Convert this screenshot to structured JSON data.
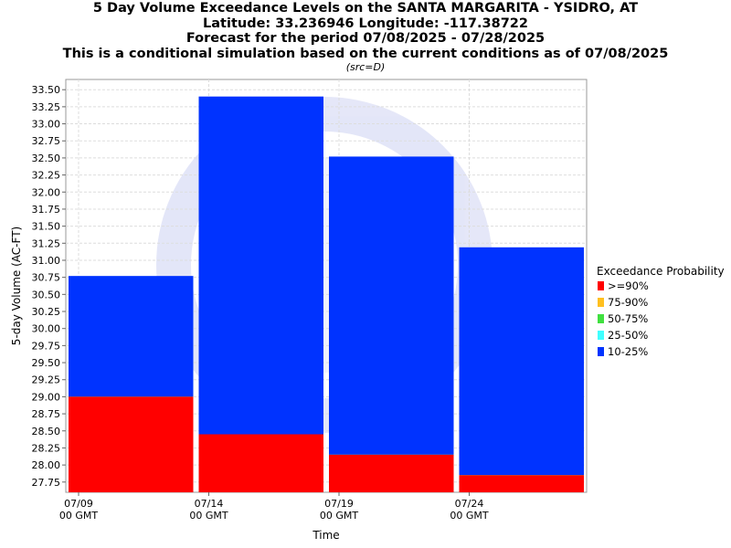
{
  "chart_data": {
    "type": "bar",
    "title_lines": [
      "5 Day Volume Exceedance Levels on the SANTA MARGARITA - YSIDRO, AT",
      "Latitude: 33.236946 Longitude: -117.38722",
      "Forecast for the period 07/08/2025 - 07/28/2025",
      "This is a conditional simulation based on the current conditions as of 07/08/2025"
    ],
    "subtitle": "(src=D)",
    "xlabel": "Time",
    "ylabel": "5-day Volume (AC-FT)",
    "ylim": [
      27.6,
      33.65
    ],
    "yticks": [
      "27.75",
      "28.00",
      "28.25",
      "28.50",
      "28.75",
      "29.00",
      "29.25",
      "29.50",
      "29.75",
      "30.00",
      "30.25",
      "30.50",
      "30.75",
      "31.00",
      "31.25",
      "31.50",
      "31.75",
      "32.00",
      "32.25",
      "32.50",
      "32.75",
      "33.00",
      "33.25",
      "33.50"
    ],
    "xticks": [
      {
        "date": "07/09",
        "time": "00 GMT"
      },
      {
        "date": "07/14",
        "time": "00 GMT"
      },
      {
        "date": "07/19",
        "time": "00 GMT"
      },
      {
        "date": "07/24",
        "time": "00 GMT"
      }
    ],
    "categories": [
      "07/09",
      "07/14",
      "07/19",
      "07/24"
    ],
    "series": [
      {
        "name": ">=90%",
        "color": "#ff0000",
        "values": [
          29.0,
          28.45,
          28.15,
          27.85
        ]
      },
      {
        "name": "75-90%",
        "color": "#ffc020",
        "values": [
          29.0,
          28.45,
          28.15,
          27.85
        ]
      },
      {
        "name": "50-75%",
        "color": "#40e040",
        "values": [
          29.0,
          28.45,
          28.15,
          27.85
        ]
      },
      {
        "name": "25-50%",
        "color": "#40ffff",
        "values": [
          29.0,
          28.45,
          28.15,
          27.85
        ]
      },
      {
        "name": "10-25%",
        "color": "#0033ff",
        "values": [
          30.77,
          33.4,
          32.52,
          31.19
        ]
      }
    ],
    "legend": {
      "title": "Exceedance Probability",
      "position": "right"
    },
    "grid": true
  }
}
